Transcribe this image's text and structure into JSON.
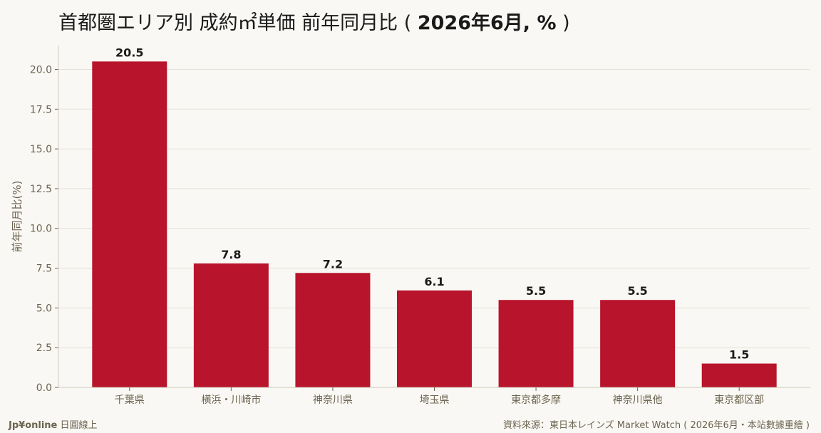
{
  "title": {
    "main": "首都圏エリア別 成約㎡単価 前年同月比",
    "paren_open": " ( ",
    "period": "2026年6月, %",
    "paren_close": " )"
  },
  "footer": {
    "brand": "Jp¥online",
    "brand_sub": " 日圓線上",
    "source": "資料來源：東日本レインズ Market Watch ( 2026年6月・本站數據重繪 )"
  },
  "colors": {
    "bar": "#b8142b",
    "background": "#faf8f4",
    "grid": "#e6e2da",
    "axis_text": "#6b6450",
    "label_text": "#1a1a1a"
  },
  "chart_data": {
    "type": "bar",
    "categories": [
      "千葉県",
      "横浜・川崎市",
      "神奈川県",
      "埼玉県",
      "東京都多摩",
      "神奈川県他",
      "東京都区部"
    ],
    "values": [
      20.5,
      7.8,
      7.2,
      6.1,
      5.5,
      5.5,
      1.5
    ],
    "value_labels": [
      "20.5",
      "7.8",
      "7.2",
      "6.1",
      "5.5",
      "5.5",
      "1.5"
    ],
    "title": "首都圏エリア別 成約㎡単価 前年同月比 ( 2026年6月, % )",
    "xlabel": "",
    "ylabel": "前年同月比(%)",
    "ylim": [
      0,
      21.5
    ],
    "yticks": [
      0,
      2.5,
      5,
      7.5,
      10,
      12.5,
      15,
      17.5,
      20
    ],
    "ytick_labels": [
      "0.0",
      "2.5",
      "5.0",
      "7.5",
      "10.0",
      "12.5",
      "15.0",
      "17.5",
      "20.0"
    ],
    "grid": true
  }
}
